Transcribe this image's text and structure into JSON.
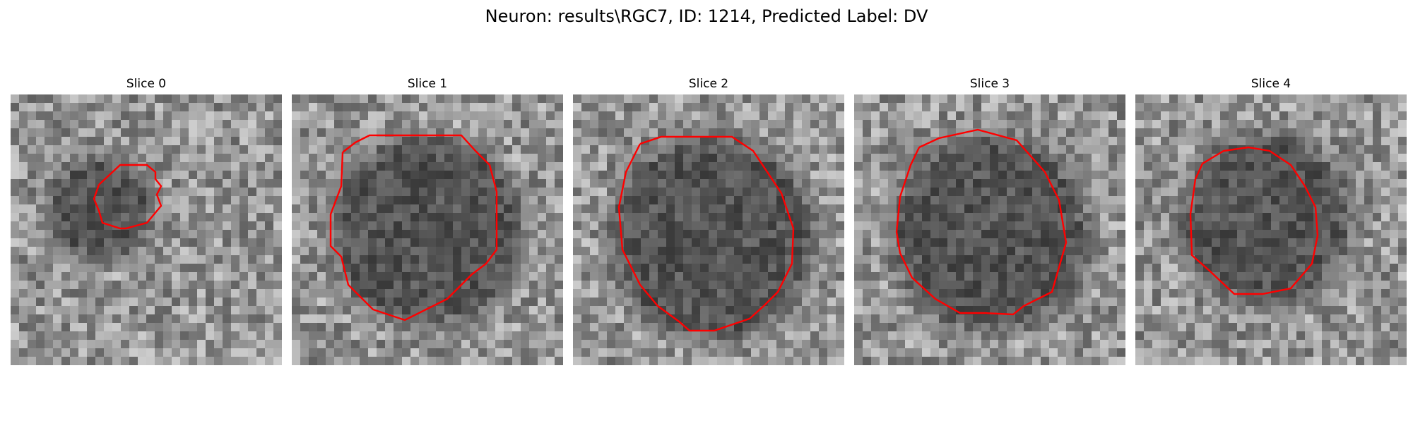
{
  "figure": {
    "title": "Neuron: results\\RGC7, ID: 1214, Predicted Label: DV"
  },
  "panels": [
    {
      "title": "Slice 0",
      "seed": 11,
      "contour_color": "#ff0000"
    },
    {
      "title": "Slice 1",
      "seed": 23,
      "contour_color": "#ff0000"
    },
    {
      "title": "Slice 2",
      "seed": 37,
      "contour_color": "#ff0000"
    },
    {
      "title": "Slice 3",
      "seed": 41,
      "contour_color": "#ff0000"
    },
    {
      "title": "Slice 4",
      "seed": 59,
      "contour_color": "#ff0000"
    }
  ]
}
